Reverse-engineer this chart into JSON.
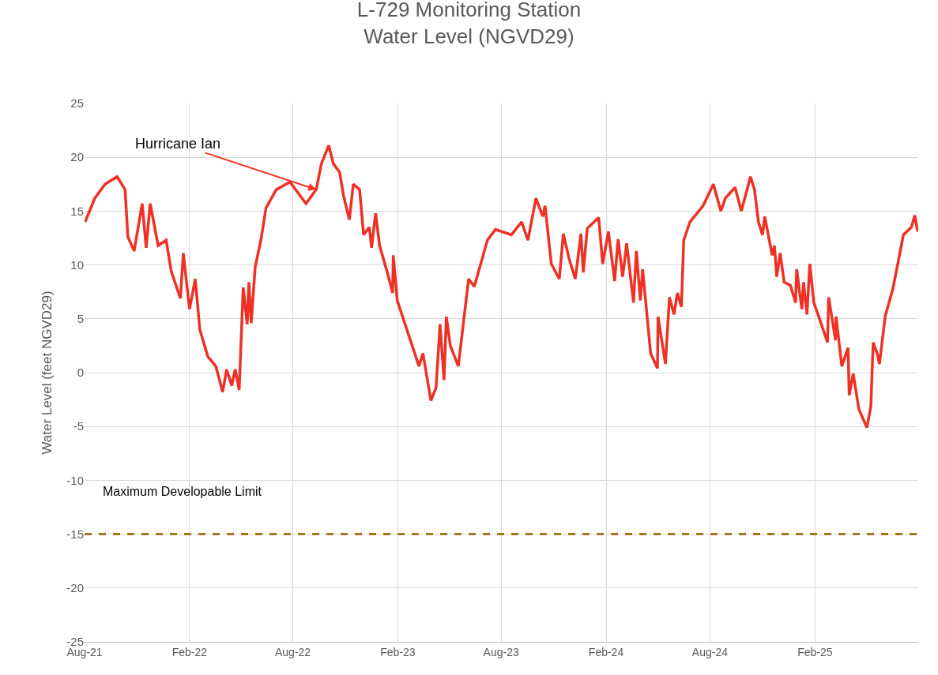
{
  "chart_data": {
    "type": "line",
    "title": "L-729 Monitoring Station\nWater Level (NGVD29)",
    "ylabel": "Water Level (feet NGVD29)",
    "x": [
      "2021-08-02",
      "2021-08-19",
      "2021-09-06",
      "2021-09-27",
      "2021-10-11",
      "2021-10-16",
      "2021-10-27",
      "2021-11-10",
      "2021-11-17",
      "2021-11-24",
      "2021-12-08",
      "2021-12-22",
      "2021-12-31",
      "2022-01-16",
      "2022-01-21",
      "2022-02-01",
      "2022-02-11",
      "2022-02-19",
      "2022-03-05",
      "2022-03-19",
      "2022-03-31",
      "2022-04-07",
      "2022-04-16",
      "2022-04-22",
      "2022-04-29",
      "2022-05-06",
      "2022-05-13",
      "2022-05-16",
      "2022-05-20",
      "2022-05-27",
      "2022-06-06",
      "2022-06-15",
      "2022-07-03",
      "2022-07-27",
      "2022-08-24",
      "2022-09-11",
      "2022-09-20",
      "2022-10-03",
      "2022-10-11",
      "2022-10-22",
      "2022-10-29",
      "2022-11-08",
      "2022-11-15",
      "2022-11-26",
      "2022-12-03",
      "2022-12-13",
      "2022-12-17",
      "2022-12-24",
      "2022-12-31",
      "2023-01-13",
      "2023-01-23",
      "2023-01-24",
      "2023-01-31",
      "2023-03-10",
      "2023-03-17",
      "2023-03-31",
      "2023-04-09",
      "2023-04-16",
      "2023-04-23",
      "2023-04-27",
      "2023-05-04",
      "2023-05-18",
      "2023-06-05",
      "2023-06-15",
      "2023-07-08",
      "2023-07-22",
      "2023-08-19",
      "2023-09-06",
      "2023-09-17",
      "2023-10-01",
      "2023-10-13",
      "2023-10-17",
      "2023-10-28",
      "2023-11-11",
      "2023-11-18",
      "2023-11-28",
      "2023-12-09",
      "2023-12-19",
      "2023-12-23",
      "2023-12-30",
      "2024-01-19",
      "2024-01-26",
      "2024-02-05",
      "2024-02-16",
      "2024-02-22",
      "2024-03-01",
      "2024-03-08",
      "2024-03-20",
      "2024-03-25",
      "2024-04-01",
      "2024-04-05",
      "2024-04-19",
      "2024-05-01",
      "2024-05-02",
      "2024-05-15",
      "2024-05-22",
      "2024-05-30",
      "2024-06-05",
      "2024-06-12",
      "2024-06-16",
      "2024-06-27",
      "2024-07-20",
      "2024-08-07",
      "2024-08-20",
      "2024-08-28",
      "2024-09-14",
      "2024-09-25",
      "2024-10-11",
      "2024-10-18",
      "2024-10-25",
      "2024-11-01",
      "2024-11-05",
      "2024-11-18",
      "2024-11-22",
      "2024-11-26",
      "2024-12-02",
      "2024-12-09",
      "2024-12-20",
      "2024-12-29",
      "2024-12-31",
      "2025-01-09",
      "2025-01-12",
      "2025-01-18",
      "2025-01-23",
      "2025-01-30",
      "2025-02-09",
      "2025-02-23",
      "2025-02-25",
      "2025-03-09",
      "2025-03-10",
      "2025-03-20",
      "2025-03-31",
      "2025-04-02",
      "2025-04-09",
      "2025-04-19",
      "2025-05-03",
      "2025-05-10",
      "2025-05-14",
      "2025-05-21",
      "2025-05-25",
      "2025-06-04",
      "2025-06-18",
      "2025-07-06",
      "2025-07-20",
      "2025-07-26",
      "2025-07-31"
    ],
    "series": [
      {
        "color": "#ee3124",
        "values": [
          14.0,
          16.2,
          17.5,
          18.2,
          17.0,
          12.6,
          11.3,
          15.7,
          11.6,
          15.7,
          11.8,
          12.3,
          9.4,
          6.9,
          11.1,
          5.9,
          8.7,
          4.0,
          1.5,
          0.6,
          -1.8,
          0.3,
          -1.2,
          0.3,
          -1.6,
          7.9,
          4.5,
          8.4,
          4.6,
          9.8,
          12.3,
          15.3,
          17.0,
          17.7,
          15.7,
          17.0,
          19.4,
          21.1,
          19.4,
          18.6,
          16.4,
          14.2,
          17.5,
          17.0,
          12.8,
          13.5,
          11.6,
          14.8,
          11.8,
          9.4,
          7.4,
          10.9,
          6.7,
          0.6,
          1.8,
          -2.6,
          -1.4,
          4.5,
          -0.7,
          5.2,
          2.5,
          0.6,
          8.7,
          8.0,
          12.3,
          13.3,
          12.8,
          14.0,
          12.3,
          16.2,
          14.5,
          15.5,
          10.1,
          8.7,
          12.9,
          10.6,
          8.7,
          12.9,
          9.3,
          13.4,
          14.4,
          10.1,
          13.1,
          8.5,
          12.4,
          8.9,
          12.0,
          6.5,
          11.3,
          6.7,
          9.6,
          1.8,
          0.4,
          5.2,
          0.8,
          7.0,
          5.4,
          7.4,
          6.1,
          12.3,
          14.0,
          15.5,
          17.5,
          15.0,
          16.2,
          17.2,
          15.0,
          18.2,
          17.0,
          14.0,
          12.8,
          14.5,
          10.9,
          11.8,
          8.9,
          11.1,
          8.4,
          8.1,
          6.5,
          9.6,
          5.9,
          8.4,
          5.4,
          10.1,
          6.5,
          5.0,
          2.8,
          7.0,
          3.0,
          5.2,
          0.6,
          2.3,
          -2.1,
          -0.1,
          -3.4,
          -5.1,
          -3.1,
          2.8,
          1.8,
          0.8,
          5.2,
          7.9,
          12.8,
          13.5,
          14.6,
          13.1
        ]
      }
    ],
    "xlim": [
      "2021-08-01",
      "2025-08-01"
    ],
    "xticks": [
      {
        "value": "2021-08-01",
        "label": "Aug-21"
      },
      {
        "value": "2022-02-01",
        "label": "Feb-22"
      },
      {
        "value": "2022-08-01",
        "label": "Aug-22"
      },
      {
        "value": "2023-02-01",
        "label": "Feb-23"
      },
      {
        "value": "2023-08-01",
        "label": "Aug-23"
      },
      {
        "value": "2024-02-01",
        "label": "Feb-24"
      },
      {
        "value": "2024-08-01",
        "label": "Aug-24"
      },
      {
        "value": "2025-02-01",
        "label": "Feb-25"
      }
    ],
    "ylim": [
      -25,
      25
    ],
    "yticks": [
      -25,
      -20,
      -15,
      -10,
      -5,
      0,
      5,
      10,
      15,
      20,
      25
    ],
    "grid": true,
    "ref_lines": [
      {
        "axis": "y",
        "value": -15,
        "label": "Maximum Developable Limit",
        "color": "#9c7a1a",
        "line_style": "dashed"
      }
    ],
    "annotations": [
      {
        "text": "Hurricane Ian",
        "x": "2022-09-11",
        "y": 17.0
      }
    ]
  }
}
